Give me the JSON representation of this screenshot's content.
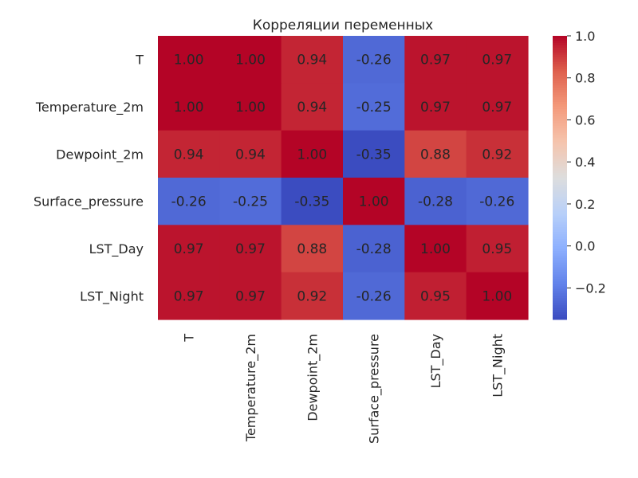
{
  "chart_data": {
    "type": "heatmap",
    "title": "Корреляции переменных",
    "xlabel": "",
    "ylabel": "",
    "categories": [
      "T",
      "Temperature_2m",
      "Dewpoint_2m",
      "Surface_pressure",
      "LST_Day",
      "LST_Night"
    ],
    "matrix": [
      [
        1.0,
        1.0,
        0.94,
        -0.26,
        0.97,
        0.97
      ],
      [
        1.0,
        1.0,
        0.94,
        -0.25,
        0.97,
        0.97
      ],
      [
        0.94,
        0.94,
        1.0,
        -0.35,
        0.88,
        0.92
      ],
      [
        -0.26,
        -0.25,
        -0.35,
        1.0,
        -0.28,
        -0.26
      ],
      [
        0.97,
        0.97,
        0.88,
        -0.28,
        1.0,
        0.95
      ],
      [
        0.97,
        0.97,
        0.92,
        -0.26,
        0.95,
        1.0
      ]
    ],
    "annotation_format": "2 decimals",
    "colormap": "coolwarm",
    "color_range": [
      -0.35,
      1.0
    ],
    "colorbar": {
      "ticks": [
        1.0,
        0.8,
        0.6,
        0.4,
        0.2,
        0.0,
        -0.2
      ],
      "tick_labels": [
        "1.0",
        "0.8",
        "0.6",
        "0.4",
        "0.2",
        "0.0",
        "−0.2"
      ]
    },
    "grid": false,
    "legend": "colorbar-right"
  }
}
